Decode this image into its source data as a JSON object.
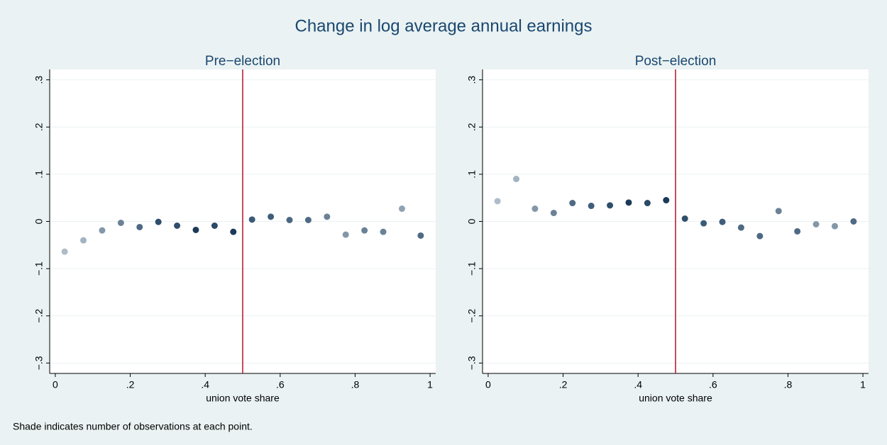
{
  "title": "Change in log average annual earnings",
  "note": "Shade indicates number of observations at each point.",
  "chart_data": [
    {
      "type": "scatter",
      "title": "Pre−election",
      "x_label": "union vote share",
      "x": [
        0.025,
        0.075,
        0.125,
        0.175,
        0.225,
        0.275,
        0.325,
        0.375,
        0.425,
        0.475,
        0.525,
        0.575,
        0.625,
        0.675,
        0.725,
        0.775,
        0.825,
        0.875,
        0.925,
        0.975
      ],
      "values": [
        -0.064,
        -0.04,
        -0.019,
        -0.003,
        -0.012,
        -0.001,
        -0.009,
        -0.018,
        -0.009,
        -0.022,
        0.004,
        0.01,
        0.003,
        0.003,
        0.01,
        -0.028,
        -0.019,
        -0.022,
        0.027,
        -0.03
      ],
      "colors": [
        "#aebcc9",
        "#a3b3c1",
        "#8397a8",
        "#6b8296",
        "#4e6a84",
        "#2f4e6b",
        "#2f4e6b",
        "#1c3a58",
        "#2a4a68",
        "#1c3a58",
        "#3a5a78",
        "#3f5e7b",
        "#4a6782",
        "#4e6a84",
        "#6b8296",
        "#8397a8",
        "#6b8296",
        "#6b8296",
        "#8fa3b3",
        "#4e6a84"
      ],
      "vline": 0.5,
      "vline_color": "#b5102c",
      "xlim": [
        -0.015,
        1.015
      ],
      "ylim": [
        -0.322,
        0.322
      ],
      "xticks": [
        0,
        {
          "value": 0.2,
          "label": ".2"
        },
        {
          "value": 0.4,
          "label": ".4"
        },
        {
          "value": 0.6,
          "label": ".6"
        },
        {
          "value": 0.8,
          "label": ".8"
        },
        1
      ],
      "yticks": [
        {
          "value": -0.3,
          "label": "−.3"
        },
        {
          "value": -0.2,
          "label": "−.2"
        },
        {
          "value": -0.1,
          "label": "−.1"
        },
        0,
        {
          "value": 0.1,
          "label": ".1"
        },
        {
          "value": 0.2,
          "label": ".2"
        },
        {
          "value": 0.3,
          "label": ".3"
        }
      ],
      "grid": true
    },
    {
      "type": "scatter",
      "title": "Post−election",
      "x_label": "union vote share",
      "x": [
        0.025,
        0.075,
        0.125,
        0.175,
        0.225,
        0.275,
        0.325,
        0.375,
        0.425,
        0.475,
        0.525,
        0.575,
        0.625,
        0.675,
        0.725,
        0.775,
        0.825,
        0.875,
        0.925,
        0.975
      ],
      "values": [
        0.043,
        0.09,
        0.027,
        0.018,
        0.039,
        0.033,
        0.034,
        0.04,
        0.039,
        0.045,
        0.006,
        -0.004,
        -0.001,
        -0.013,
        -0.031,
        0.022,
        -0.021,
        -0.006,
        -0.01,
        0.0
      ],
      "colors": [
        "#aebcc9",
        "#a3b3c1",
        "#8397a8",
        "#6b8296",
        "#4e6a84",
        "#3f5e7b",
        "#2f4e6b",
        "#1c3a58",
        "#2a4a68",
        "#1c3a58",
        "#2f4e6b",
        "#3a5a78",
        "#3f5e7b",
        "#4e6a84",
        "#4e6a84",
        "#6b8296",
        "#4e6a84",
        "#8397a8",
        "#8397a8",
        "#4e6a84"
      ],
      "vline": 0.5,
      "vline_color": "#b5102c",
      "xlim": [
        -0.015,
        1.015
      ],
      "ylim": [
        -0.322,
        0.322
      ],
      "xticks": [
        0,
        {
          "value": 0.2,
          "label": ".2"
        },
        {
          "value": 0.4,
          "label": ".4"
        },
        {
          "value": 0.6,
          "label": ".6"
        },
        {
          "value": 0.8,
          "label": ".8"
        },
        1
      ],
      "yticks": [
        {
          "value": -0.3,
          "label": "−.3"
        },
        {
          "value": -0.2,
          "label": "−.2"
        },
        {
          "value": -0.1,
          "label": "−.1"
        },
        0,
        {
          "value": 0.1,
          "label": ".1"
        },
        {
          "value": 0.2,
          "label": ".2"
        },
        {
          "value": 0.3,
          "label": ".3"
        }
      ],
      "grid": true
    }
  ]
}
